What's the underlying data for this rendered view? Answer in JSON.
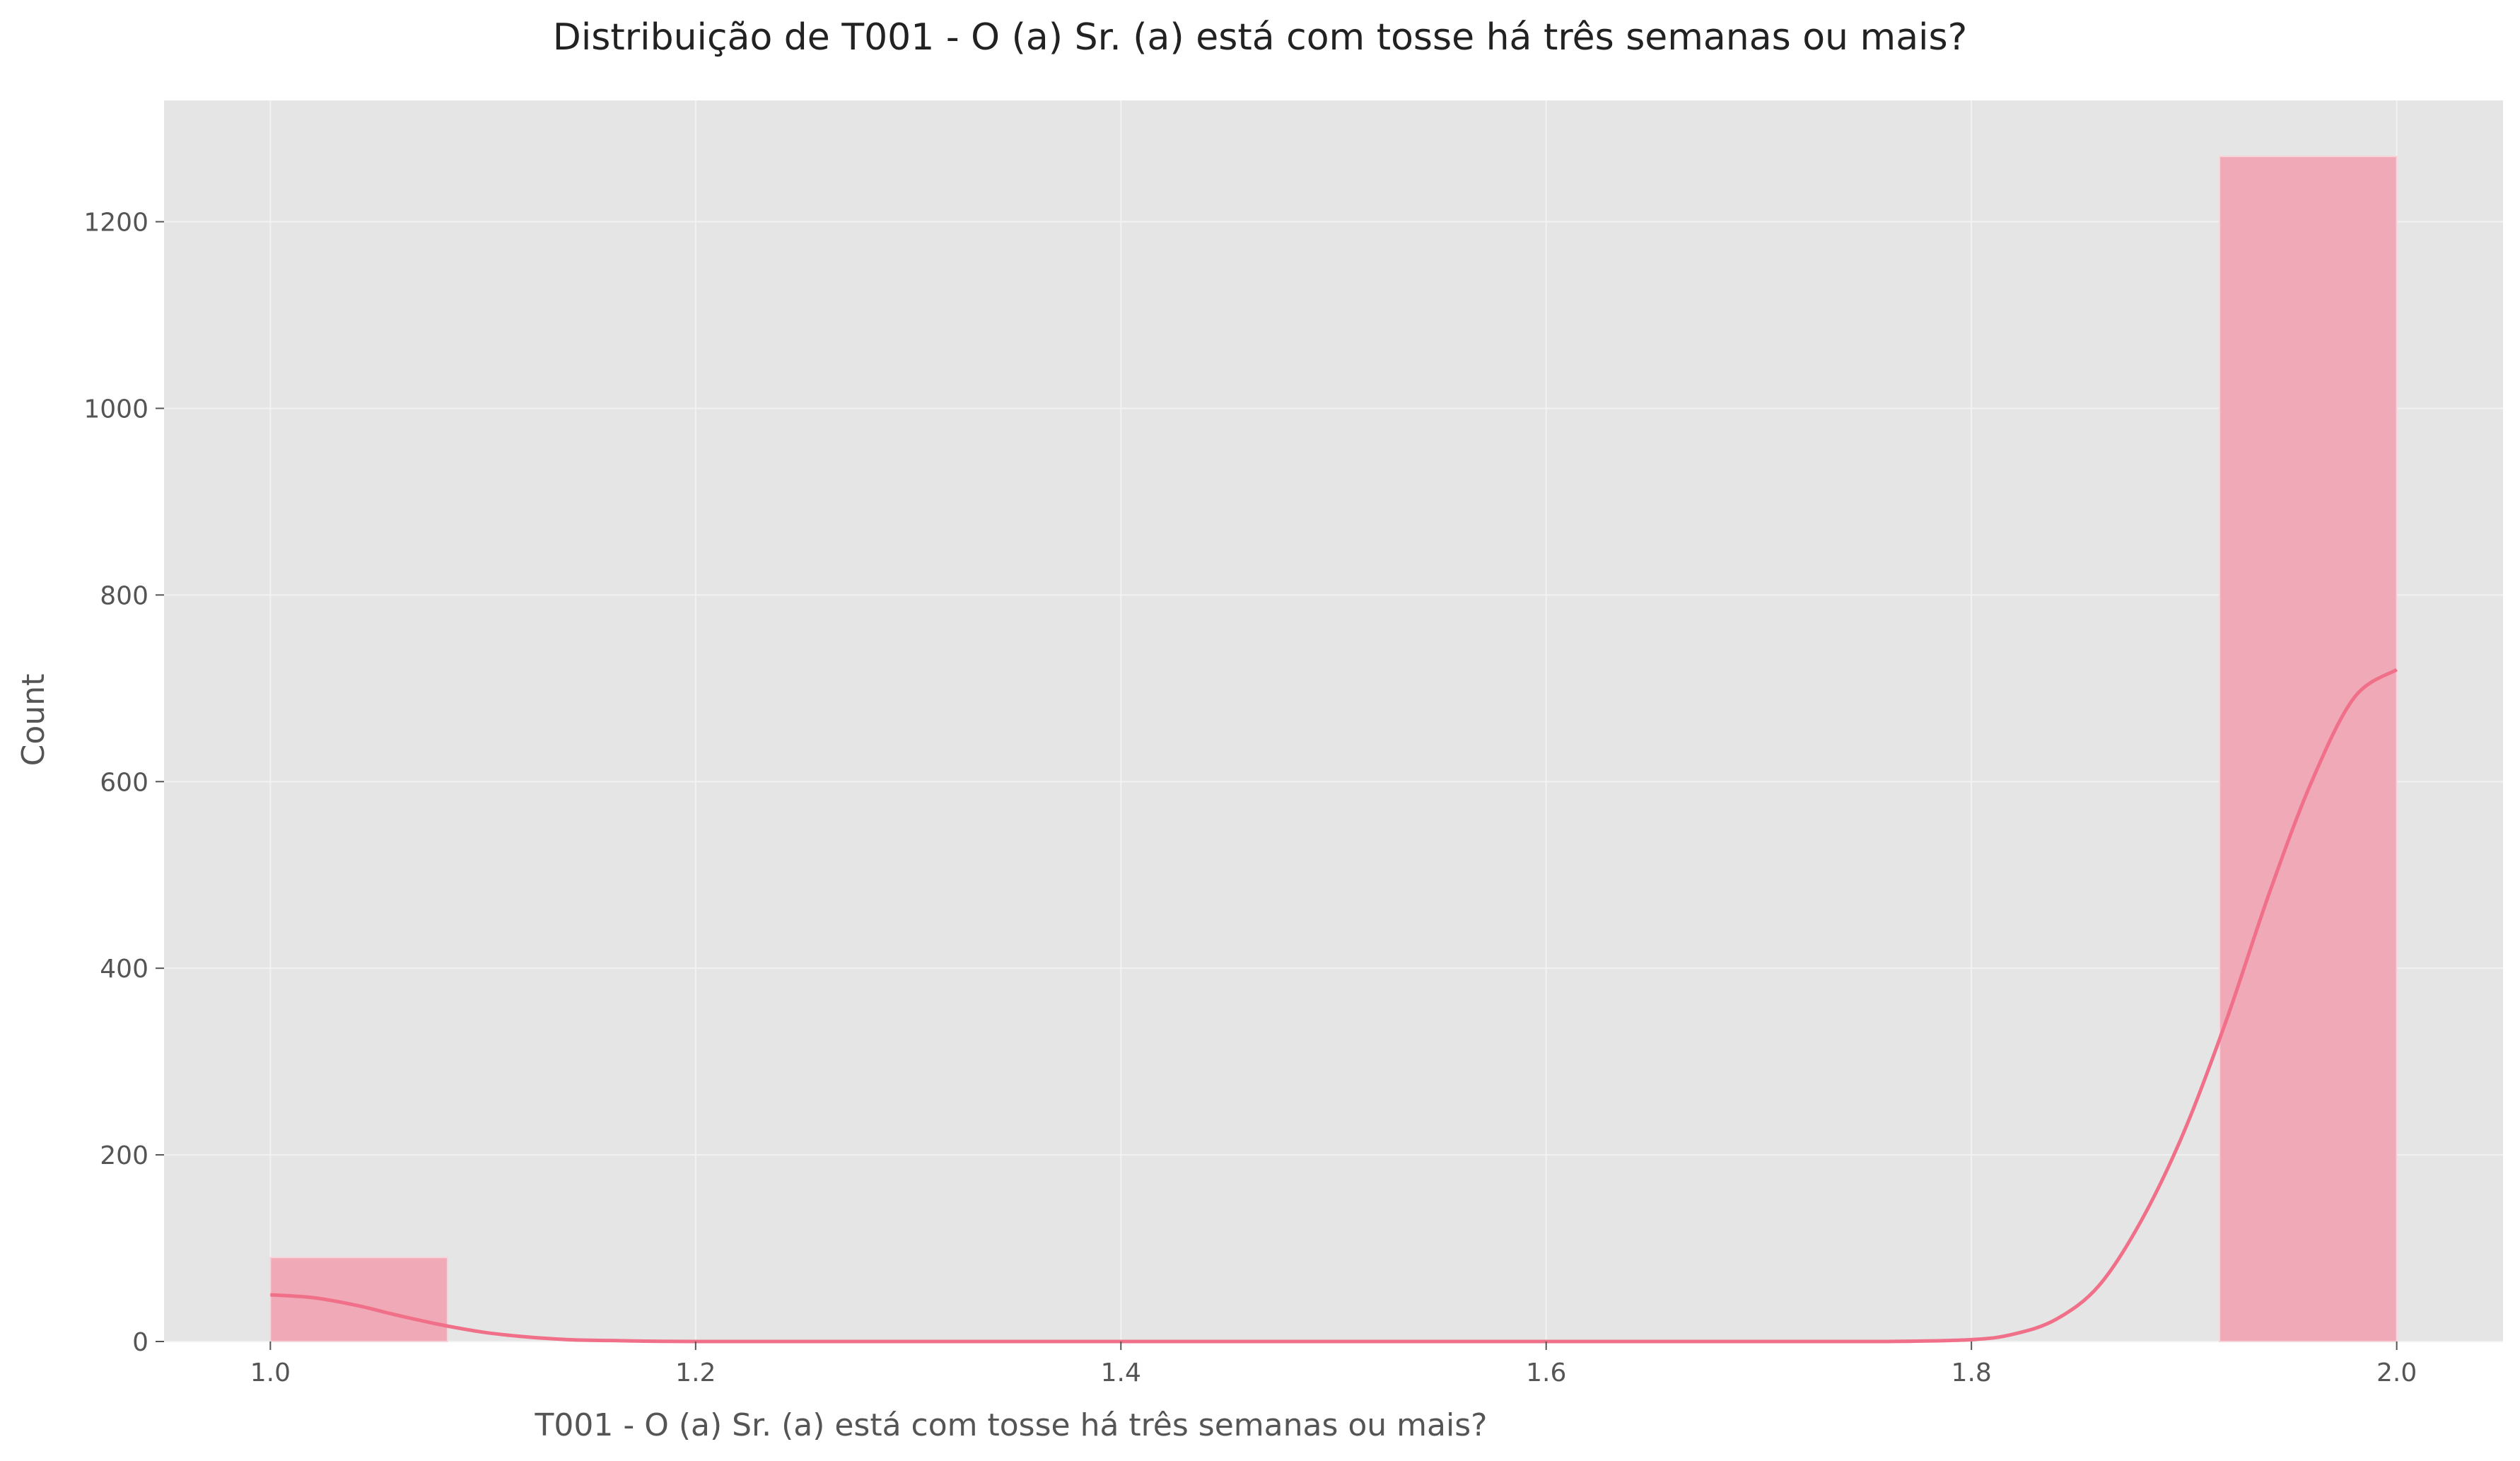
{
  "chart_data": {
    "type": "bar",
    "title": "Distribuição de T001 - O (a) Sr. (a) está com tosse há três semanas ou mais?",
    "xlabel": "T001 - O (a) Sr. (a) está com tosse há três semanas ou mais?",
    "ylabel": "Count",
    "xlim": [
      0.95,
      2.05
    ],
    "ylim": [
      0,
      1330
    ],
    "xticks": [
      1.0,
      1.2,
      1.4,
      1.6,
      1.8,
      2.0
    ],
    "xtick_labels": [
      "1.0",
      "1.2",
      "1.4",
      "1.6",
      "1.8",
      "2.0"
    ],
    "yticks": [
      0,
      200,
      400,
      600,
      800,
      1000,
      1200
    ],
    "ytick_labels": [
      "0",
      "200",
      "400",
      "600",
      "800",
      "1000",
      "1200"
    ],
    "bins": [
      {
        "x0": 1.0,
        "x1": 1.0833,
        "count": 90
      },
      {
        "x0": 1.9167,
        "x1": 2.0,
        "count": 1270
      }
    ],
    "kde": {
      "x": [
        1.0,
        1.02,
        1.04,
        1.06,
        1.08,
        1.1,
        1.12,
        1.14,
        1.16,
        1.2,
        1.3,
        1.4,
        1.5,
        1.6,
        1.7,
        1.76,
        1.8,
        1.82,
        1.84,
        1.86,
        1.88,
        1.9,
        1.92,
        1.94,
        1.96,
        1.98,
        2.0
      ],
      "y": [
        50,
        47,
        39,
        28,
        18,
        10,
        5,
        2,
        1,
        0,
        0,
        0,
        0,
        0,
        0,
        0,
        2,
        8,
        24,
        60,
        130,
        225,
        345,
        480,
        600,
        690,
        720
      ]
    },
    "grid": true,
    "legend": "none",
    "colors": {
      "bar": "#f0a9b6",
      "line": "#f07089",
      "background": "#e5e5e5",
      "grid": "#f2f2f2",
      "tick_text": "#555555",
      "title": "#222222"
    }
  }
}
